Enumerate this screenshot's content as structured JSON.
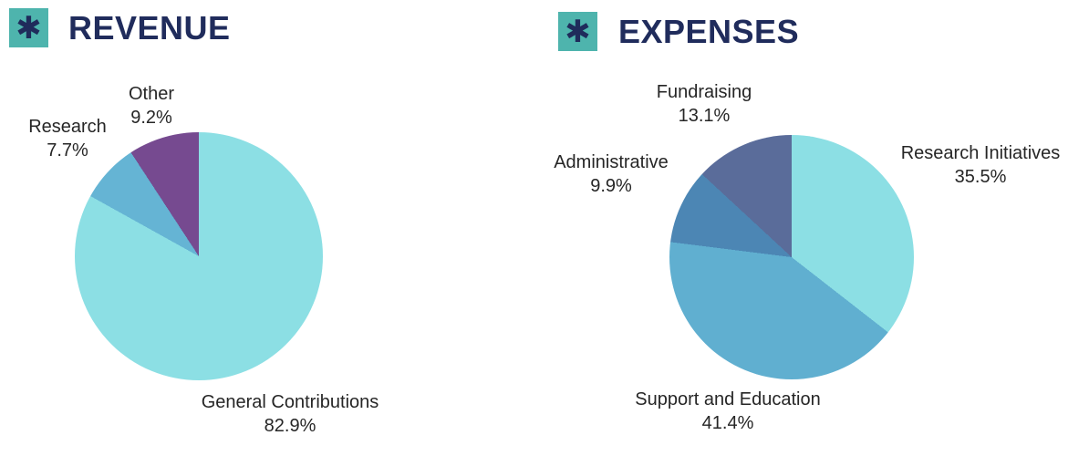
{
  "colors": {
    "title_navy": "#202C5C",
    "label_text": "#262626",
    "icon_teal": "#4EB4AD",
    "icon_glyph_navy": "#1F2B5B",
    "cyan": "#8CDFE4",
    "research_blue": "#65B4D4",
    "support_blue": "#60AFD0",
    "admin_blue": "#4C86B4",
    "fundraising_slate": "#5A6C9A",
    "purple": "#764A90"
  },
  "icons": {
    "asterisk_glyph": "✱"
  },
  "chart_data": [
    {
      "type": "pie",
      "title": "REVENUE",
      "labels": [
        "General Contributions",
        "Research",
        "Other"
      ],
      "values": [
        82.9,
        7.7,
        9.2
      ],
      "colors": [
        "#8CDFE4",
        "#65B4D4",
        "#764A90"
      ],
      "start_angle_deg": 0,
      "direction": "clockwise",
      "legend_position": "around-slices",
      "label_format": "name over percent"
    },
    {
      "type": "pie",
      "title": "EXPENSES",
      "labels": [
        "Research Initiatives",
        "Support and Education",
        "Administrative",
        "Fundraising"
      ],
      "values": [
        35.5,
        41.4,
        9.9,
        13.1
      ],
      "colors": [
        "#8CDFE4",
        "#60AFD0",
        "#4C86B4",
        "#5A6C9A"
      ],
      "start_angle_deg": 0,
      "direction": "clockwise",
      "legend_position": "around-slices",
      "label_format": "name over percent"
    }
  ]
}
